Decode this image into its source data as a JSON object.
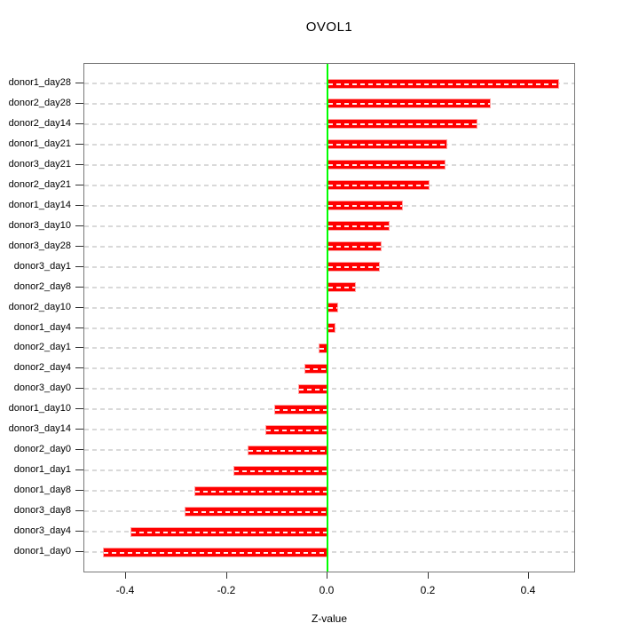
{
  "title": "OVOL1",
  "chart_data": {
    "type": "bar",
    "orientation": "horizontal",
    "title": "OVOL1",
    "xlabel": "Z-value",
    "categories": [
      "donor1_day28",
      "donor2_day28",
      "donor2_day14",
      "donor1_day21",
      "donor3_day21",
      "donor2_day21",
      "donor1_day14",
      "donor3_day10",
      "donor3_day28",
      "donor3_day1",
      "donor2_day8",
      "donor2_day10",
      "donor1_day4",
      "donor2_day1",
      "donor2_day4",
      "donor3_day0",
      "donor1_day10",
      "donor3_day14",
      "donor2_day0",
      "donor1_day1",
      "donor1_day8",
      "donor3_day8",
      "donor3_day4",
      "donor1_day0"
    ],
    "values": [
      0.46,
      0.324,
      0.298,
      0.237,
      0.234,
      0.203,
      0.15,
      0.123,
      0.107,
      0.104,
      0.056,
      0.021,
      0.016,
      -0.018,
      -0.046,
      -0.058,
      -0.106,
      -0.123,
      -0.159,
      -0.187,
      -0.264,
      -0.284,
      -0.391,
      -0.446
    ],
    "x_ticks": [
      -0.4,
      -0.2,
      0.0,
      0.2,
      0.4
    ],
    "x_tick_labels": [
      "-0.4",
      "-0.2",
      "0.0",
      "0.2",
      "0.4"
    ],
    "xlim": [
      -0.483,
      0.498
    ],
    "grid": true,
    "legend": null,
    "colors": {
      "bar": "#ff0000",
      "bar_border": "#ffa6a6",
      "zero_line": "#00ff00",
      "grid": "#d9d9d9",
      "box": "#787878",
      "text": "#000000"
    }
  }
}
